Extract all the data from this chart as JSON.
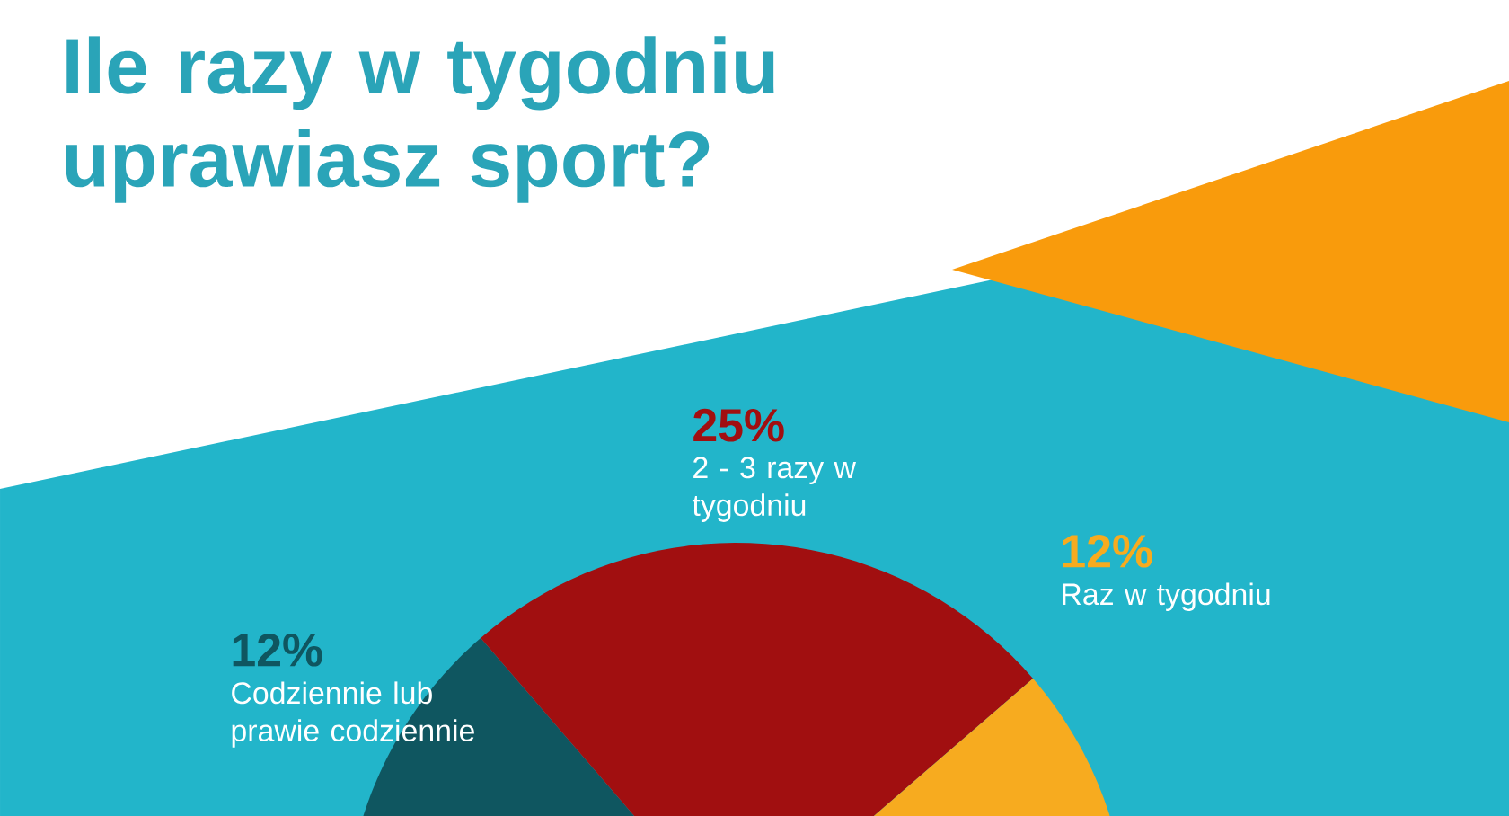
{
  "chart_data": {
    "type": "pie",
    "title": "Ile razy w tygodniu uprawiasz sport?",
    "categories": [
      "Codziennie lub prawie codziennie",
      "2 - 3 razy w tygodniu",
      "Raz w tygodniu"
    ],
    "values": [
      12,
      25,
      12
    ],
    "value_labels": [
      "12%",
      "25%",
      "12%"
    ],
    "colors": [
      "#0f5660",
      "#a10f10",
      "#f7ab1f"
    ]
  }
}
